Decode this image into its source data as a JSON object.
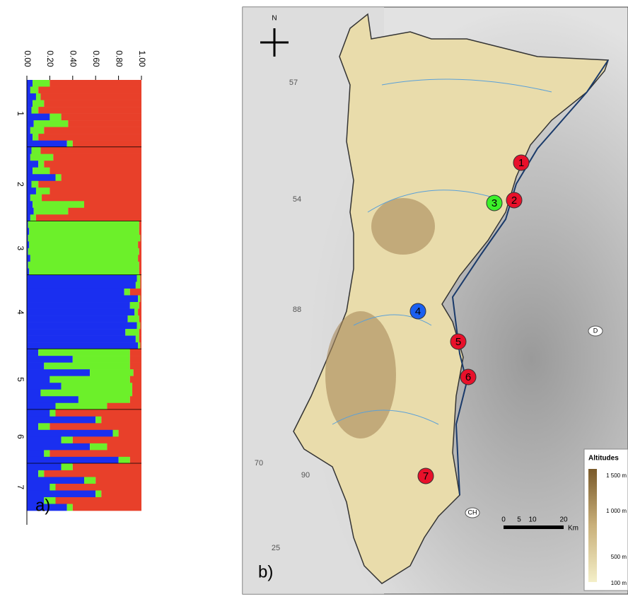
{
  "chart_data": {
    "type": "structure",
    "colors": [
      "#1a2ff0",
      "#6cf02a",
      "#e8402a"
    ],
    "xlim": [
      0,
      1
    ],
    "xticks": [
      {
        "value": 0,
        "label": "0.00"
      },
      {
        "value": 0.2,
        "label": "0.20"
      },
      {
        "value": 0.4,
        "label": "0.40"
      },
      {
        "value": 0.6,
        "label": "0.60"
      },
      {
        "value": 0.8,
        "label": "0.80"
      },
      {
        "value": 1,
        "label": "1.00"
      }
    ],
    "groups": [
      {
        "label": "1",
        "values": [
          [
            0.05,
            0.15,
            0.8
          ],
          [
            0.03,
            0.07,
            0.9
          ],
          [
            0.08,
            0.04,
            0.88
          ],
          [
            0.05,
            0.1,
            0.85
          ],
          [
            0.04,
            0.06,
            0.9
          ],
          [
            0.2,
            0.1,
            0.7
          ],
          [
            0.06,
            0.3,
            0.64
          ],
          [
            0.03,
            0.12,
            0.85
          ],
          [
            0.05,
            0.05,
            0.9
          ],
          [
            0.35,
            0.05,
            0.6
          ]
        ]
      },
      {
        "label": "2",
        "values": [
          [
            0.04,
            0.08,
            0.88
          ],
          [
            0.03,
            0.2,
            0.77
          ],
          [
            0.1,
            0.05,
            0.85
          ],
          [
            0.05,
            0.15,
            0.8
          ],
          [
            0.25,
            0.05,
            0.7
          ],
          [
            0.04,
            0.06,
            0.9
          ],
          [
            0.08,
            0.12,
            0.8
          ],
          [
            0.03,
            0.1,
            0.87
          ],
          [
            0.05,
            0.45,
            0.5
          ],
          [
            0.06,
            0.3,
            0.64
          ],
          [
            0.03,
            0.05,
            0.92
          ]
        ]
      },
      {
        "label": "3",
        "values": [
          [
            0.01,
            0.97,
            0.02
          ],
          [
            0.02,
            0.96,
            0.02
          ],
          [
            0.01,
            0.98,
            0.01
          ],
          [
            0.02,
            0.95,
            0.03
          ],
          [
            0.01,
            0.97,
            0.02
          ],
          [
            0.03,
            0.94,
            0.03
          ],
          [
            0.01,
            0.97,
            0.02
          ],
          [
            0.02,
            0.96,
            0.02
          ]
        ]
      },
      {
        "label": "4",
        "values": [
          [
            0.96,
            0.03,
            0.01
          ],
          [
            0.95,
            0.04,
            0.01
          ],
          [
            0.85,
            0.05,
            0.1
          ],
          [
            0.97,
            0.02,
            0.01
          ],
          [
            0.9,
            0.08,
            0.02
          ],
          [
            0.94,
            0.03,
            0.03
          ],
          [
            0.88,
            0.1,
            0.02
          ],
          [
            0.96,
            0.03,
            0.01
          ],
          [
            0.86,
            0.12,
            0.02
          ],
          [
            0.95,
            0.03,
            0.02
          ],
          [
            0.97,
            0.02,
            0.01
          ]
        ]
      },
      {
        "label": "5",
        "values": [
          [
            0.1,
            0.8,
            0.1
          ],
          [
            0.4,
            0.5,
            0.1
          ],
          [
            0.15,
            0.75,
            0.1
          ],
          [
            0.55,
            0.38,
            0.07
          ],
          [
            0.2,
            0.7,
            0.1
          ],
          [
            0.3,
            0.62,
            0.08
          ],
          [
            0.12,
            0.8,
            0.08
          ],
          [
            0.45,
            0.45,
            0.1
          ],
          [
            0.25,
            0.45,
            0.3
          ]
        ]
      },
      {
        "label": "6",
        "values": [
          [
            0.2,
            0.05,
            0.75
          ],
          [
            0.6,
            0.05,
            0.35
          ],
          [
            0.1,
            0.1,
            0.8
          ],
          [
            0.75,
            0.05,
            0.2
          ],
          [
            0.3,
            0.1,
            0.6
          ],
          [
            0.55,
            0.15,
            0.3
          ],
          [
            0.15,
            0.05,
            0.8
          ],
          [
            0.8,
            0.1,
            0.1
          ]
        ]
      },
      {
        "label": "7",
        "values": [
          [
            0.3,
            0.1,
            0.6
          ],
          [
            0.1,
            0.05,
            0.85
          ],
          [
            0.5,
            0.1,
            0.4
          ],
          [
            0.2,
            0.05,
            0.75
          ],
          [
            0.6,
            0.05,
            0.35
          ],
          [
            0.15,
            0.1,
            0.75
          ],
          [
            0.35,
            0.05,
            0.6
          ]
        ]
      }
    ]
  },
  "panel_labels": [
    "a)",
    "b)"
  ],
  "map": {
    "north": "N",
    "markers": [
      {
        "label": "1",
        "color": "#e8102a"
      },
      {
        "label": "2",
        "color": "#e8102a"
      },
      {
        "label": "3",
        "color": "#3cf02a"
      },
      {
        "label": "4",
        "color": "#1a5ff0"
      },
      {
        "label": "5",
        "color": "#e8102a"
      },
      {
        "label": "6",
        "color": "#e8102a"
      },
      {
        "label": "7",
        "color": "#e8102a"
      }
    ],
    "region_labels": [
      "57",
      "54",
      "88",
      "70",
      "90",
      "25"
    ],
    "country_labels": [
      "D",
      "CH"
    ],
    "legend": {
      "title": "Altitudes",
      "labels": [
        "1 500 m",
        "1 000 m",
        "500 m",
        "100 m"
      ]
    },
    "scale": {
      "labels": [
        "0",
        "5",
        "10",
        "20"
      ],
      "unit": "Km"
    }
  }
}
